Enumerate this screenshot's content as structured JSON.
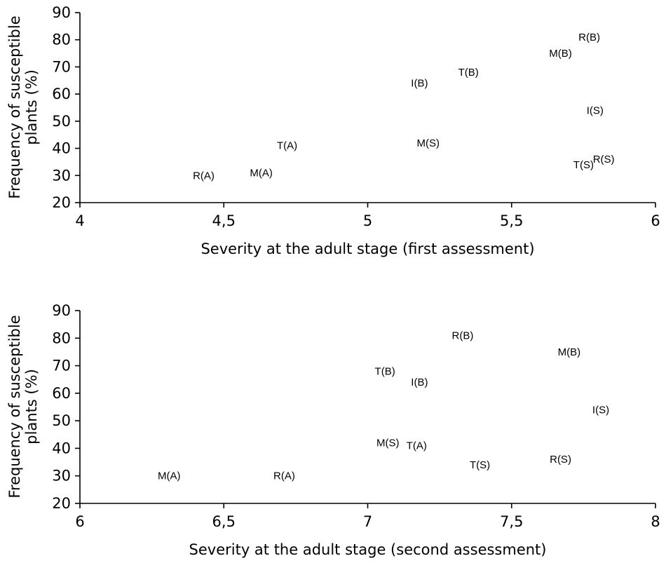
{
  "chart_data": [
    {
      "type": "scatter",
      "title": "",
      "xlabel": "Severity at the adult stage (first assessment)",
      "ylabel": "Frequency of susceptible plants (%)",
      "xlim": [
        4,
        6
      ],
      "ylim": [
        20,
        90
      ],
      "xticks": [
        "4",
        "4,5",
        "5",
        "5,5",
        "6"
      ],
      "yticks": [
        "20",
        "30",
        "40",
        "50",
        "60",
        "70",
        "80",
        "90"
      ],
      "grid": false,
      "points": [
        {
          "label": "R(A)",
          "x": 4.43,
          "y": 30
        },
        {
          "label": "M(A)",
          "x": 4.63,
          "y": 31
        },
        {
          "label": "T(A)",
          "x": 4.72,
          "y": 41
        },
        {
          "label": "I(B)",
          "x": 5.18,
          "y": 64
        },
        {
          "label": "M(S)",
          "x": 5.21,
          "y": 42
        },
        {
          "label": "T(B)",
          "x": 5.35,
          "y": 68
        },
        {
          "label": "M(B)",
          "x": 5.67,
          "y": 75
        },
        {
          "label": "R(B)",
          "x": 5.77,
          "y": 81
        },
        {
          "label": "I(S)",
          "x": 5.79,
          "y": 54
        },
        {
          "label": "T(S)",
          "x": 5.75,
          "y": 34
        },
        {
          "label": "R(S)",
          "x": 5.82,
          "y": 36
        }
      ]
    },
    {
      "type": "scatter",
      "title": "",
      "xlabel": "Severity at the adult stage (second assessment)",
      "ylabel": "Frequency of susceptible plants (%)",
      "xlim": [
        6,
        8
      ],
      "ylim": [
        20,
        90
      ],
      "xticks": [
        "6",
        "6,5",
        "7",
        "7,5",
        "8"
      ],
      "yticks": [
        "20",
        "30",
        "40",
        "50",
        "60",
        "70",
        "80",
        "90"
      ],
      "grid": false,
      "points": [
        {
          "label": "M(A)",
          "x": 6.31,
          "y": 30
        },
        {
          "label": "R(A)",
          "x": 6.71,
          "y": 30
        },
        {
          "label": "M(S)",
          "x": 7.07,
          "y": 42
        },
        {
          "label": "T(A)",
          "x": 7.17,
          "y": 41
        },
        {
          "label": "T(B)",
          "x": 7.06,
          "y": 68
        },
        {
          "label": "I(B)",
          "x": 7.18,
          "y": 64
        },
        {
          "label": "R(B)",
          "x": 7.33,
          "y": 81
        },
        {
          "label": "T(S)",
          "x": 7.39,
          "y": 34
        },
        {
          "label": "R(S)",
          "x": 7.67,
          "y": 36
        },
        {
          "label": "M(B)",
          "x": 7.7,
          "y": 75
        },
        {
          "label": "I(S)",
          "x": 7.81,
          "y": 54
        }
      ]
    }
  ]
}
